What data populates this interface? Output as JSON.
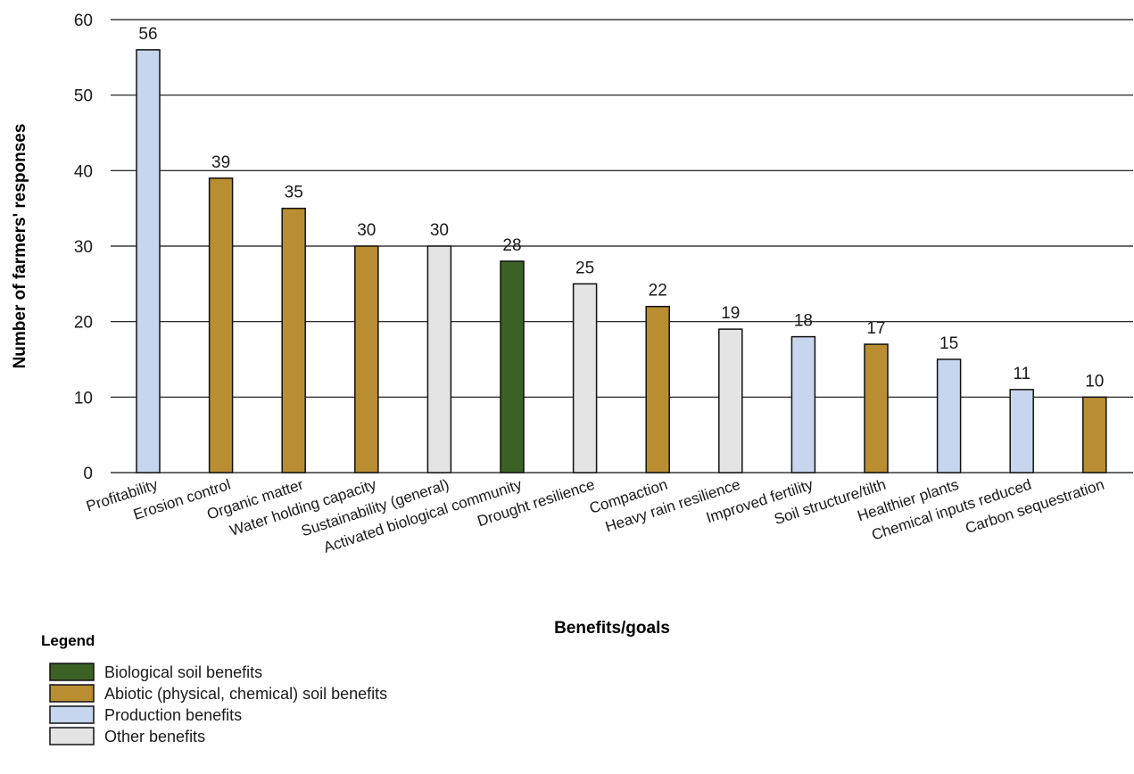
{
  "chart_data": {
    "type": "bar",
    "title": "",
    "xlabel": "Benefits/goals",
    "ylabel": "Number of farmers' responses",
    "ylim": [
      0,
      60
    ],
    "yticks": [
      0,
      10,
      20,
      30,
      40,
      50,
      60
    ],
    "grid": "horizontal",
    "categories": [
      "Profitability",
      "Erosion control",
      "Organic matter",
      "Water holding capacity",
      "Sustainability (general)",
      "Activated biological community",
      "Drought resilience",
      "Compaction",
      "Heavy rain resilience",
      "Improved fertility",
      "Soil structure/tilth",
      "Healthier plants",
      "Chemical inputs reduced",
      "Carbon sequestration"
    ],
    "values": [
      56,
      39,
      35,
      30,
      30,
      28,
      25,
      22,
      19,
      18,
      17,
      15,
      11,
      10
    ],
    "bar_groups": [
      "production",
      "abiotic",
      "abiotic",
      "abiotic",
      "other",
      "biological",
      "other",
      "abiotic",
      "other",
      "production",
      "abiotic",
      "production",
      "production",
      "abiotic"
    ],
    "legend_placement": "bottom-left",
    "legend": {
      "title": "Legend",
      "items": [
        {
          "key": "biological",
          "label": "Biological soil benefits",
          "color": "#3b6124"
        },
        {
          "key": "abiotic",
          "label": "Abiotic (physical, chemical) soil benefits",
          "color": "#b98d32"
        },
        {
          "key": "production",
          "label": "Production benefits",
          "color": "#c6d6ee"
        },
        {
          "key": "other",
          "label": "Other benefits",
          "color": "#e4e4e4"
        }
      ]
    }
  }
}
